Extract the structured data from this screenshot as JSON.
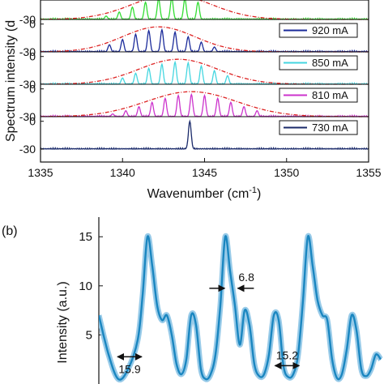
{
  "chart_data": [
    {
      "type": "line",
      "panel_label": "",
      "xlabel": "Wavenumber (cm",
      "xlabel_sup": "-1",
      "xlabel_close": ")",
      "ylabel": "Spectrum intensity (dB)",
      "ylabel_visible": "Spectrum intensity (d",
      "xlim": [
        1335,
        1355
      ],
      "xticks": [
        "1335",
        "1340",
        "1345",
        "1350",
        "1355"
      ],
      "subplot_ylim": [
        -30,
        5
      ],
      "subplot_yticks": [
        "0",
        "-30"
      ],
      "series": [
        {
          "name": "",
          "color": "#33dd33",
          "center": 1343.0,
          "sigma": 2.6,
          "peaks": [
            1339.0,
            1339.8,
            1340.6,
            1341.4,
            1342.2,
            1343.0,
            1343.8,
            1344.6
          ],
          "envelope": true,
          "partial": true
        },
        {
          "name": "920 mA",
          "color": "#1a2a9a",
          "center": 1342.2,
          "sigma": 2.4,
          "peaks": [
            1339.2,
            1340.0,
            1340.8,
            1341.6,
            1342.4,
            1343.2,
            1344.0,
            1344.8,
            1345.6
          ],
          "envelope": true
        },
        {
          "name": "850 mA",
          "color": "#44d6e0",
          "center": 1343.4,
          "sigma": 2.6,
          "peaks": [
            1340.0,
            1340.8,
            1341.6,
            1342.4,
            1343.2,
            1344.0,
            1344.8,
            1345.6,
            1346.4
          ],
          "envelope": true
        },
        {
          "name": "810 mA",
          "color": "#cc33cc",
          "center": 1344.2,
          "sigma": 3.0,
          "peaks": [
            1338.6,
            1339.4,
            1340.2,
            1341.0,
            1341.8,
            1342.6,
            1343.4,
            1344.2,
            1345.0,
            1345.8,
            1346.6,
            1347.4,
            1348.2
          ],
          "envelope": true
        },
        {
          "name": "730 mA",
          "color": "#1a2a6a",
          "center": 1344.1,
          "sigma": 0.3,
          "peaks": [
            1344.1
          ],
          "envelope": false
        }
      ]
    },
    {
      "type": "line",
      "panel_label": "(b)",
      "ylabel": "Intensity (a.u.)",
      "xlabel": "",
      "ylim": [
        0,
        17
      ],
      "yticks": [
        "5",
        "10",
        "15"
      ],
      "color": "#1a86c0",
      "band_color": "#8cc4e6",
      "x": [
        0,
        10,
        20,
        30,
        40,
        45,
        50,
        55,
        60,
        65,
        70,
        75,
        80,
        85,
        90,
        95,
        100,
        105,
        110,
        115,
        120,
        125,
        130,
        135,
        140,
        145,
        150,
        155,
        160,
        165,
        170,
        175,
        180,
        185,
        190,
        195,
        200,
        205,
        210,
        215,
        220,
        225,
        230,
        235,
        240,
        245,
        250,
        255,
        260,
        265,
        270,
        275,
        280,
        285,
        290
      ],
      "y": [
        7.0,
        3.0,
        0.5,
        1.5,
        4.5,
        9.0,
        15.0,
        12.0,
        8.0,
        6.5,
        7.0,
        5.0,
        2.0,
        1.0,
        2.5,
        7.0,
        6.0,
        1.5,
        0.5,
        1.0,
        3.0,
        8.0,
        15.0,
        11.5,
        8.0,
        4.0,
        7.5,
        6.0,
        2.0,
        0.8,
        1.0,
        3.0,
        7.0,
        6.5,
        1.8,
        0.7,
        1.0,
        3.0,
        8.5,
        15.0,
        12.0,
        8.5,
        7.0,
        6.5,
        2.5,
        0.6,
        1.0,
        3.5,
        7.0,
        5.5,
        1.5,
        0.8,
        1.5,
        3.0,
        2.5
      ],
      "annotations": [
        {
          "label": "6.8",
          "x": 132,
          "y": 9.5
        },
        {
          "label": "15.9",
          "x": 25,
          "y": 3.1
        },
        {
          "label": "15.2",
          "x": 187,
          "y": 2.2
        }
      ]
    }
  ]
}
